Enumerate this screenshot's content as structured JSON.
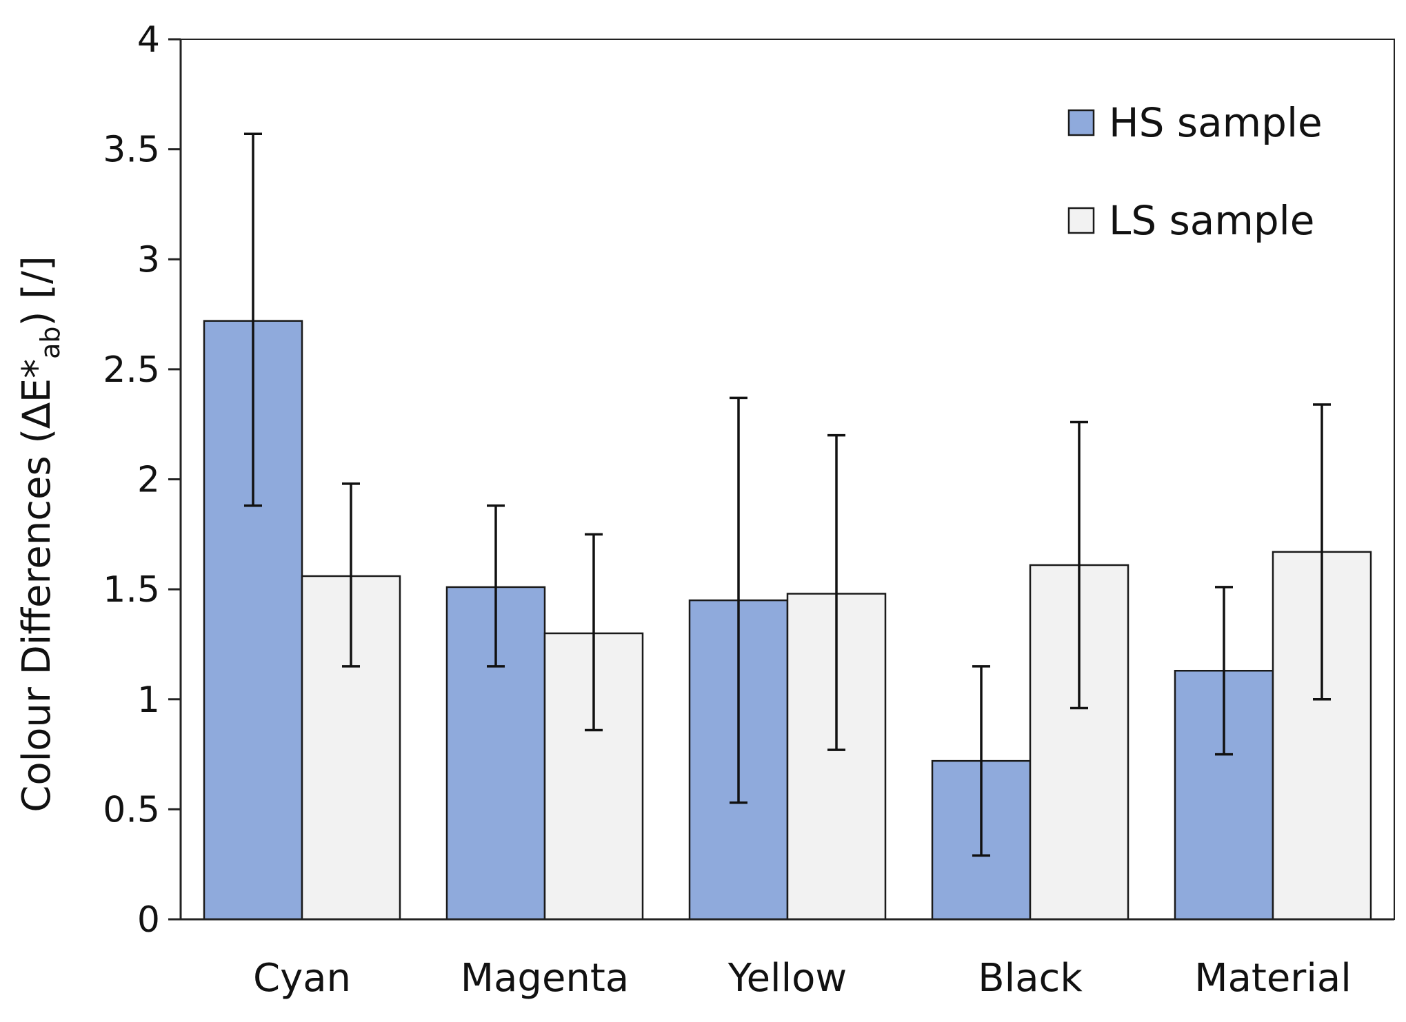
{
  "chart_data": {
    "type": "bar",
    "title": "",
    "xlabel": "",
    "ylabel": {
      "prefix": "Colour Differences  (∆E*",
      "subscript": "ab",
      "suffix": ") [/]"
    },
    "ylim": [
      0,
      4
    ],
    "yticks": [
      0,
      0.5,
      1,
      1.5,
      2,
      2.5,
      3,
      3.5,
      4
    ],
    "ytick_labels": [
      "0",
      "0.5",
      "1",
      "1.5",
      "2",
      "2.5",
      "3",
      "3.5",
      "4"
    ],
    "categories": [
      "Cyan",
      "Magenta",
      "Yellow",
      "Black",
      "Material"
    ],
    "series": [
      {
        "name": "HS sample",
        "color": "#8faadc",
        "values": [
          2.72,
          1.51,
          1.45,
          0.72,
          1.13
        ],
        "error_low": [
          1.88,
          1.15,
          0.53,
          0.29,
          0.75
        ],
        "error_high": [
          3.57,
          1.88,
          2.37,
          1.15,
          1.51
        ]
      },
      {
        "name": "LS sample",
        "color": "#f2f2f2",
        "values": [
          1.56,
          1.3,
          1.48,
          1.61,
          1.67
        ],
        "error_low": [
          1.15,
          0.86,
          0.77,
          0.96,
          1.0
        ],
        "error_high": [
          1.98,
          1.75,
          2.2,
          2.26,
          2.34
        ]
      }
    ],
    "legend": {
      "position": "top-right"
    },
    "grid": false
  }
}
